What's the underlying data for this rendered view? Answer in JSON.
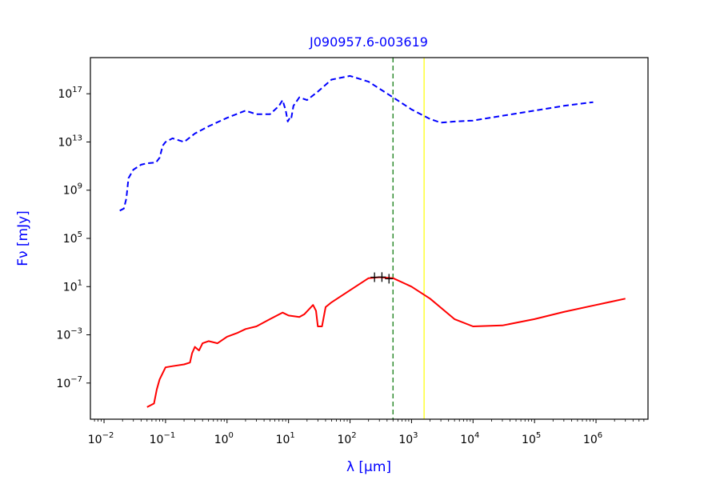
{
  "chart_data": {
    "type": "line",
    "title": "J090957.6-003619",
    "xlabel": "λ [μm]",
    "ylabel": "Fν [mJy]",
    "x_scale": "log",
    "y_scale": "log",
    "xlim": [
      0.006,
      7000000
    ],
    "ylim": [
      1e-10,
      1e+20
    ],
    "x_ticks": [
      {
        "mant": "10",
        "exp": "−2",
        "value": 0.01
      },
      {
        "mant": "10",
        "exp": "−1",
        "value": 0.1
      },
      {
        "mant": "10",
        "exp": "0",
        "value": 1
      },
      {
        "mant": "10",
        "exp": "1",
        "value": 10
      },
      {
        "mant": "10",
        "exp": "2",
        "value": 100
      },
      {
        "mant": "10",
        "exp": "3",
        "value": 1000
      },
      {
        "mant": "10",
        "exp": "4",
        "value": 10000
      },
      {
        "mant": "10",
        "exp": "5",
        "value": 100000
      },
      {
        "mant": "10",
        "exp": "6",
        "value": 1000000
      }
    ],
    "y_ticks": [
      {
        "mant": "10",
        "exp": "−7",
        "value": 1e-07
      },
      {
        "mant": "10",
        "exp": "−3",
        "value": 0.001
      },
      {
        "mant": "10",
        "exp": "1",
        "value": 10
      },
      {
        "mant": "10",
        "exp": "5",
        "value": 100000.0
      },
      {
        "mant": "10",
        "exp": "9",
        "value": 1000000000.0
      },
      {
        "mant": "10",
        "exp": "13",
        "value": 10000000000000.0
      },
      {
        "mant": "10",
        "exp": "17",
        "value": 1e+17
      }
    ],
    "vertical_lines": [
      {
        "x": 500,
        "color": "#2e8b2e",
        "style": "dashed"
      },
      {
        "x": 1600,
        "color": "#ffff00",
        "style": "solid"
      }
    ],
    "series": [
      {
        "color": "#0000ff",
        "style": "dashed",
        "points": [
          [
            0.018,
            20000000.0
          ],
          [
            0.021,
            30000000.0
          ],
          [
            0.023,
            200000000.0
          ],
          [
            0.025,
            10000000000.0
          ],
          [
            0.03,
            50000000000.0
          ],
          [
            0.04,
            130000000000.0
          ],
          [
            0.05,
            170000000000.0
          ],
          [
            0.07,
            200000000000.0
          ],
          [
            0.08,
            500000000000.0
          ],
          [
            0.09,
            5000000000000.0
          ],
          [
            0.1,
            10000000000000.0
          ],
          [
            0.13,
            20000000000000.0
          ],
          [
            0.2,
            10000000000000.0
          ],
          [
            0.3,
            50000000000000.0
          ],
          [
            0.5,
            200000000000000.0
          ],
          [
            1,
            1000000000000000.0
          ],
          [
            2,
            4000000000000000.0
          ],
          [
            3,
            2000000000000000.0
          ],
          [
            5,
            2000000000000000.0
          ],
          [
            7,
            1e+16
          ],
          [
            8,
            3e+16
          ],
          [
            9,
            4000000000000000.0
          ],
          [
            9.7,
            500000000000000.0
          ],
          [
            10.5,
            1000000000000000.0
          ],
          [
            11,
            800000000000000.0
          ],
          [
            12,
            1e+16
          ],
          [
            15,
            5e+16
          ],
          [
            20,
            3e+16
          ],
          [
            30,
            1.5e+17
          ],
          [
            50,
            1.5e+18
          ],
          [
            100,
            3e+18
          ],
          [
            200,
            1e+18
          ],
          [
            500,
            5e+16
          ],
          [
            1000,
            5000000000000000.0
          ],
          [
            2000,
            800000000000000.0
          ],
          [
            3000,
            400000000000000.0
          ],
          [
            5000,
            500000000000000.0
          ],
          [
            10000,
            600000000000000.0
          ],
          [
            30000,
            1500000000000000.0
          ],
          [
            100000,
            4000000000000000.0
          ],
          [
            300000,
            1e+16
          ],
          [
            900000,
            2e+16
          ]
        ]
      },
      {
        "color": "#ff0000",
        "style": "solid",
        "points": [
          [
            0.05,
            1e-09
          ],
          [
            0.065,
            2e-09
          ],
          [
            0.072,
            3e-08
          ],
          [
            0.08,
            2e-07
          ],
          [
            0.1,
            2e-06
          ],
          [
            0.13,
            2.5e-06
          ],
          [
            0.2,
            3.5e-06
          ],
          [
            0.25,
            5e-06
          ],
          [
            0.27,
            3e-05
          ],
          [
            0.3,
            0.0001
          ],
          [
            0.35,
            5e-05
          ],
          [
            0.4,
            0.0002
          ],
          [
            0.5,
            0.0003
          ],
          [
            0.7,
            0.0002
          ],
          [
            1,
            0.0007
          ],
          [
            1.5,
            0.0015
          ],
          [
            2,
            0.003
          ],
          [
            3,
            0.005
          ],
          [
            5,
            0.02
          ],
          [
            8,
            0.07
          ],
          [
            10,
            0.04
          ],
          [
            15,
            0.03
          ],
          [
            18,
            0.05
          ],
          [
            25,
            0.3
          ],
          [
            28,
            0.1
          ],
          [
            30,
            0.005
          ],
          [
            35,
            0.005
          ],
          [
            40,
            0.2
          ],
          [
            50,
            0.5
          ],
          [
            100,
            5
          ],
          [
            200,
            50
          ],
          [
            300,
            60
          ],
          [
            500,
            50
          ],
          [
            1000,
            10
          ],
          [
            2000,
            1
          ],
          [
            5000,
            0.02
          ],
          [
            10000,
            0.005
          ],
          [
            30000,
            0.006
          ],
          [
            100000,
            0.02
          ],
          [
            300000,
            0.08
          ],
          [
            1000000,
            0.3
          ],
          [
            3000000,
            1
          ]
        ]
      }
    ],
    "data_points": [
      {
        "x": 250,
        "y": 60
      },
      {
        "x": 330,
        "y": 62
      },
      {
        "x": 430,
        "y": 45
      }
    ]
  }
}
